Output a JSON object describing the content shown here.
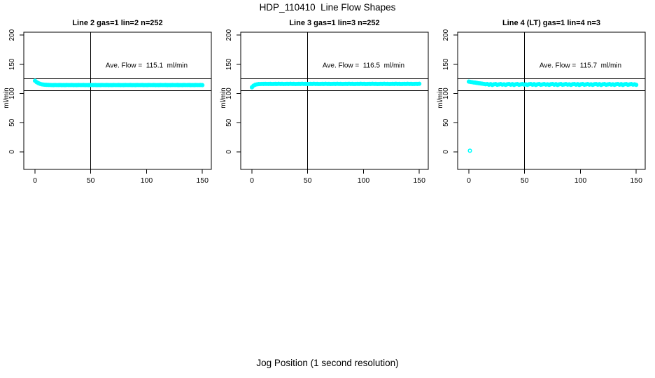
{
  "chart_data": {
    "type": "scatter",
    "layout": "1 row x 3 panels",
    "title": "HDP_110410  Line Flow Shapes",
    "xlabel": "Jog Position (1 second resolution)",
    "ylabel": "ml/min",
    "xlim": [
      -10,
      158
    ],
    "ylim": [
      -30,
      205
    ],
    "xticks": [
      0,
      50,
      100,
      150
    ],
    "yticks": [
      0,
      50,
      100,
      150,
      200
    ],
    "grid": false,
    "legend": "none",
    "point_color": "#00ffff",
    "axis_color": "#000000",
    "marker": "open-circle",
    "panels": [
      {
        "title": "Line 2 gas=1 lin=2 n=252",
        "ave_flow_ml_min": 115.1,
        "annotation": "Ave. Flow =  115.1  ml/min",
        "annotation_xy": [
          100,
          148
        ],
        "vline_x": 50,
        "hlines": [
          125,
          105
        ],
        "series": [
          {
            "name": "flow",
            "draw": "band",
            "x0": 0,
            "dx": 1.5,
            "y": [
              121.8,
              119.5,
              117.8,
              116.6,
              115.8,
              115.3,
              115.0,
              114.8,
              114.7,
              114.6,
              114.5,
              114.4,
              114.6,
              114.5,
              114.5,
              114.6,
              114.4,
              114.5,
              114.4,
              114.6,
              114.5,
              114.5,
              114.6,
              114.4,
              114.5,
              114.4,
              114.6,
              114.5,
              114.5,
              114.6,
              114.4,
              114.5,
              114.4,
              114.6,
              114.5,
              114.5,
              114.6,
              114.4,
              114.5,
              114.4,
              114.6,
              114.5,
              114.5,
              114.6,
              114.4,
              114.5,
              114.4,
              114.6,
              114.5,
              114.5,
              114.6,
              114.4,
              114.5,
              114.4,
              114.6,
              114.5,
              114.5,
              114.6,
              114.4,
              114.5,
              114.4,
              114.6,
              114.5,
              114.5,
              114.6,
              114.4,
              114.5,
              114.4,
              114.6,
              114.5,
              114.5,
              114.6,
              114.4,
              114.5,
              114.4,
              114.6,
              114.5,
              114.5,
              114.6,
              114.4,
              114.5,
              114.4,
              114.6,
              114.5,
              114.5,
              114.6,
              114.4,
              114.5,
              114.4,
              114.6,
              114.5,
              114.5,
              114.6,
              114.4,
              114.5,
              114.4,
              114.6,
              114.5,
              114.5,
              114.6,
              114.4
            ]
          }
        ]
      },
      {
        "title": "Line 3 gas=1 lin=3 n=252",
        "ave_flow_ml_min": 116.5,
        "annotation": "Ave. Flow =  116.5  ml/min",
        "annotation_xy": [
          100,
          148
        ],
        "vline_x": 50,
        "hlines": [
          125,
          105
        ],
        "series": [
          {
            "name": "flow",
            "draw": "band",
            "x0": 0,
            "dx": 1.5,
            "y": [
              110.6,
              113.4,
              114.9,
              115.7,
              116.1,
              116.3,
              116.4,
              116.4,
              116.5,
              116.4,
              116.4,
              116.5,
              116.3,
              116.4,
              116.5,
              116.4,
              116.6,
              116.4,
              116.5,
              116.3,
              116.4,
              116.5,
              116.4,
              116.6,
              116.4,
              116.5,
              116.3,
              116.4,
              116.5,
              116.4,
              116.6,
              116.4,
              116.5,
              116.3,
              116.4,
              116.5,
              116.4,
              116.6,
              116.4,
              116.5,
              116.3,
              116.4,
              116.5,
              116.4,
              116.6,
              116.4,
              116.5,
              116.3,
              116.4,
              116.5,
              116.4,
              116.6,
              116.4,
              116.5,
              116.3,
              116.4,
              116.5,
              116.4,
              116.6,
              116.4,
              116.5,
              116.3,
              116.4,
              116.5,
              116.4,
              116.6,
              116.4,
              116.5,
              116.3,
              116.4,
              116.5,
              116.4,
              116.6,
              116.4,
              116.5,
              116.3,
              116.4,
              116.5,
              116.4,
              116.6,
              116.4,
              116.5,
              116.3,
              116.4,
              116.5,
              116.4,
              116.6,
              116.4,
              116.5,
              116.3,
              116.4,
              116.5,
              116.4,
              116.6,
              116.4,
              116.5,
              116.3,
              116.4,
              116.5,
              116.4,
              116.6
            ]
          }
        ]
      },
      {
        "title": "Line 4 (LT) gas=1 lin=4 n=3",
        "ave_flow_ml_min": 115.7,
        "annotation": "Ave. Flow =  115.7  ml/min",
        "annotation_xy": [
          100,
          148
        ],
        "vline_x": 50,
        "hlines": [
          125,
          105
        ],
        "series": [
          {
            "name": "flow",
            "draw": "band",
            "x0": 0,
            "dx": 1.5,
            "y": [
              120.3,
              119.8,
              119.4,
              118.9,
              118.5,
              118.0,
              117.6,
              117.2,
              116.8,
              116.4,
              115.9,
              116.3,
              115.1,
              116.0,
              114.7,
              115.8,
              116.2,
              114.9,
              115.6,
              116.1,
              115.2,
              115.8,
              114.8,
              115.9,
              116.3,
              115.1,
              116.0,
              114.7,
              115.8,
              116.2,
              114.9,
              115.6,
              116.1,
              115.2,
              115.8,
              114.8,
              115.9,
              116.3,
              115.1,
              116.0,
              114.7,
              115.8,
              116.2,
              114.9,
              115.6,
              116.1,
              115.2,
              115.8,
              114.8,
              115.9,
              116.3,
              115.1,
              116.0,
              114.7,
              115.8,
              116.2,
              114.9,
              115.6,
              116.1,
              115.2,
              115.8,
              114.8,
              115.9,
              116.3,
              115.1,
              116.0,
              114.7,
              115.8,
              116.2,
              114.9,
              115.6,
              116.1,
              115.2,
              115.8,
              114.8,
              115.9,
              116.3,
              115.1,
              116.0,
              114.7,
              115.8,
              116.2,
              114.9,
              115.6,
              116.1,
              115.2,
              115.8,
              114.8,
              115.9,
              116.3,
              115.1,
              116.0,
              114.7,
              115.8,
              116.2,
              114.9,
              115.6,
              116.1,
              115.2,
              115.8,
              114.8
            ]
          },
          {
            "name": "startup-outlier",
            "draw": "points",
            "xy": [
              [
                1,
                2
              ]
            ]
          }
        ]
      }
    ]
  }
}
